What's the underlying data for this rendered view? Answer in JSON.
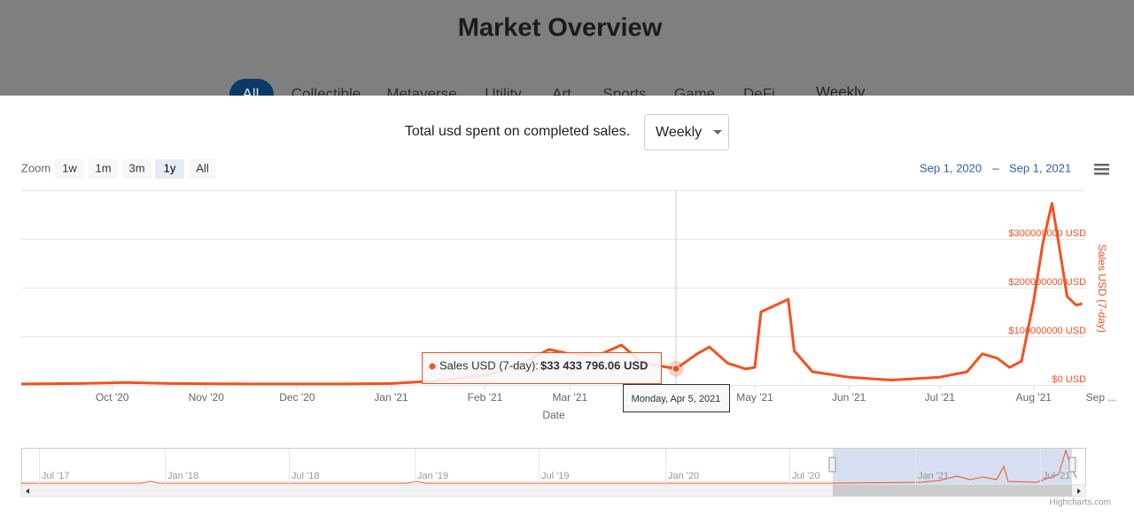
{
  "header": {
    "title": "Market Overview",
    "tabs": [
      "All",
      "Collectible",
      "Metaverse",
      "Utility",
      "Art",
      "Sports",
      "Game",
      "DeFi"
    ],
    "period": "Weekly"
  },
  "chart_data": {
    "type": "line",
    "title": "Total usd spent on completed sales.",
    "period_select": "Weekly",
    "zoom_label": "Zoom",
    "zoom_buttons": [
      "1w",
      "1m",
      "3m",
      "1y",
      "All"
    ],
    "selected_zoom": "1y",
    "range_from": "Sep 1, 2020",
    "range_separator": "–",
    "range_to": "Sep 1, 2021",
    "x_label": "Date",
    "y_label": "Sales USD (7-day)",
    "x": [
      "2020-09-01",
      "2020-09-20",
      "2020-10-05",
      "2020-10-20",
      "2020-11-15",
      "2020-12-15",
      "2021-01-01",
      "2021-01-15",
      "2021-02-01",
      "2021-02-12",
      "2021-02-22",
      "2021-03-01",
      "2021-03-10",
      "2021-03-18",
      "2021-03-25",
      "2021-04-05",
      "2021-04-12",
      "2021-04-16",
      "2021-04-22",
      "2021-04-28",
      "2021-05-01",
      "2021-05-03",
      "2021-05-12",
      "2021-05-14",
      "2021-05-20",
      "2021-06-01",
      "2021-06-15",
      "2021-07-01",
      "2021-07-10",
      "2021-07-15",
      "2021-07-20",
      "2021-07-24",
      "2021-07-28",
      "2021-08-01",
      "2021-08-04",
      "2021-08-07",
      "2021-08-09",
      "2021-08-12",
      "2021-08-15",
      "2021-08-17"
    ],
    "series": [
      {
        "name": "Sales USD (7-day)",
        "color": "#f4511e",
        "values": [
          2000000,
          3000000,
          5000000,
          3000000,
          2000000,
          2000000,
          3000000,
          8000000,
          20000000,
          40000000,
          73000000,
          64000000,
          60000000,
          82000000,
          45000000,
          33433796.06,
          64000000,
          78000000,
          45000000,
          33000000,
          36000000,
          150000000,
          176000000,
          70000000,
          27000000,
          16000000,
          10000000,
          16000000,
          27000000,
          64000000,
          55000000,
          36000000,
          49000000,
          173000000,
          291000000,
          373000000,
          300000000,
          182000000,
          164000000,
          167000000
        ],
        "value_labels": [
          null,
          null,
          null,
          null,
          null,
          null,
          null,
          null,
          null,
          null,
          null,
          null,
          null,
          null,
          null,
          "$33 433 796.06 USD",
          null,
          null,
          null,
          null,
          null,
          null,
          null,
          null,
          null,
          null,
          null,
          null,
          null,
          null,
          null,
          null,
          null,
          null,
          null,
          null,
          null,
          null,
          null,
          null
        ]
      }
    ],
    "xlim": [
      "2020-09-01",
      "2021-08-18"
    ],
    "xticks": [
      {
        "value": "2020-10-01",
        "label": "Oct '20"
      },
      {
        "value": "2020-11-01",
        "label": "Nov '20"
      },
      {
        "value": "2020-12-01",
        "label": "Dec '20"
      },
      {
        "value": "2021-01-01",
        "label": "Jan '21"
      },
      {
        "value": "2021-02-01",
        "label": "Feb '21"
      },
      {
        "value": "2021-03-01",
        "label": "Mar '21"
      },
      {
        "value": "2021-04-01",
        "label": "Apr '21"
      },
      {
        "value": "2021-05-01",
        "label": "May '21"
      },
      {
        "value": "2021-06-01",
        "label": "Jun '21"
      },
      {
        "value": "2021-07-01",
        "label": "Jul '21"
      },
      {
        "value": "2021-08-01",
        "label": "Aug '21"
      },
      {
        "value": "2021-09-01",
        "label": "Sep ..."
      }
    ],
    "ylim": [
      0,
      400000000
    ],
    "yticks": [
      {
        "value": 0,
        "label": "$0 USD"
      },
      {
        "value": 100000000,
        "label": "$100000000 USD"
      },
      {
        "value": 200000000,
        "label": "$200000000 USD"
      },
      {
        "value": 300000000,
        "label": "$300000000 USD"
      }
    ],
    "grid": true,
    "tooltip": {
      "label": "Sales USD (7-day):",
      "date": "Monday, Apr 5, 2021"
    },
    "navigator": {
      "labels": [
        "Jul '17",
        "Jan '18",
        "Jul '18",
        "Jan '19",
        "Jul '19",
        "Jan '20",
        "Jul '20",
        "Jan '21",
        "Jul '21"
      ]
    },
    "credits": "Highcharts.com"
  }
}
